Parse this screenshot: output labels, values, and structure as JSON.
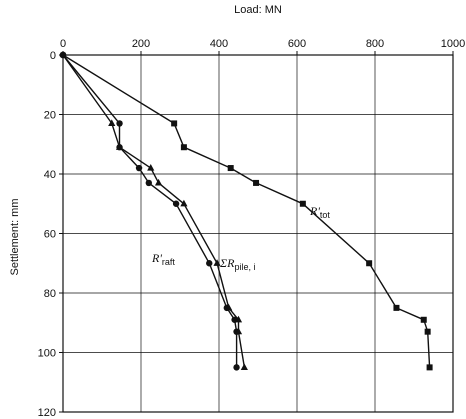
{
  "chart_data": {
    "type": "line",
    "title": "",
    "xlabel": "Load: MN",
    "ylabel": "Settlement: mm",
    "xlim": [
      0,
      1000
    ],
    "ylim": [
      0,
      120
    ],
    "y_inverted": true,
    "x_ticks": [
      "0",
      "200",
      "400",
      "600",
      "800",
      "1000"
    ],
    "y_ticks": [
      "0",
      "20",
      "40",
      "60",
      "80",
      "100",
      "120"
    ],
    "grid": true,
    "legend": "none",
    "series": [
      {
        "name": "R'tot",
        "label_main": "R'",
        "label_sub": "tot",
        "marker": "square",
        "points": [
          {
            "x": 0,
            "y": 0
          },
          {
            "x": 285,
            "y": 23
          },
          {
            "x": 310,
            "y": 31
          },
          {
            "x": 430,
            "y": 38
          },
          {
            "x": 495,
            "y": 43
          },
          {
            "x": 615,
            "y": 50
          },
          {
            "x": 785,
            "y": 70
          },
          {
            "x": 855,
            "y": 85
          },
          {
            "x": 925,
            "y": 89
          },
          {
            "x": 935,
            "y": 93
          },
          {
            "x": 940,
            "y": 105
          }
        ]
      },
      {
        "name": "R'raft",
        "label_main": "R'",
        "label_sub": "raft",
        "marker": "circle",
        "points": [
          {
            "x": 0,
            "y": 0
          },
          {
            "x": 145,
            "y": 23
          },
          {
            "x": 145,
            "y": 31
          },
          {
            "x": 195,
            "y": 38
          },
          {
            "x": 220,
            "y": 43
          },
          {
            "x": 290,
            "y": 50
          },
          {
            "x": 375,
            "y": 70
          },
          {
            "x": 420,
            "y": 85
          },
          {
            "x": 440,
            "y": 89
          },
          {
            "x": 445,
            "y": 93
          },
          {
            "x": 445,
            "y": 105
          }
        ]
      },
      {
        "name": "ΣRpile, i",
        "label_main": "ΣR",
        "label_sub": "pile, i",
        "marker": "triangle",
        "points": [
          {
            "x": 0,
            "y": 0
          },
          {
            "x": 125,
            "y": 23
          },
          {
            "x": 145,
            "y": 31
          },
          {
            "x": 225,
            "y": 38
          },
          {
            "x": 245,
            "y": 43
          },
          {
            "x": 310,
            "y": 50
          },
          {
            "x": 395,
            "y": 70
          },
          {
            "x": 425,
            "y": 85
          },
          {
            "x": 450,
            "y": 89
          },
          {
            "x": 450,
            "y": 93
          },
          {
            "x": 465,
            "y": 105
          }
        ]
      }
    ]
  }
}
